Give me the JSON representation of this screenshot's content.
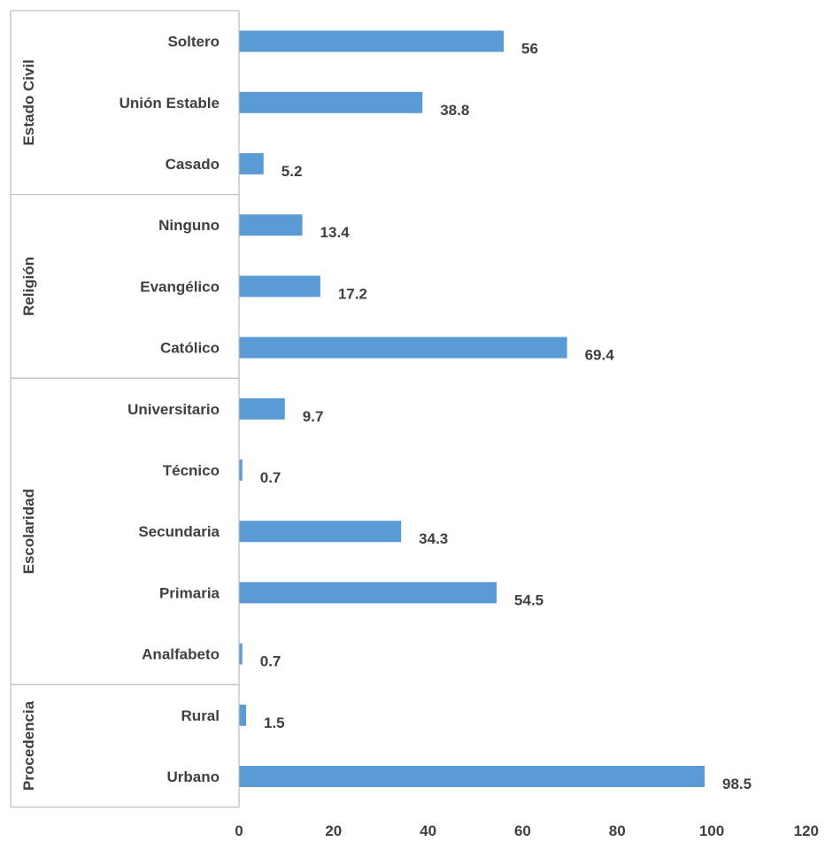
{
  "chart_data": {
    "type": "bar",
    "orientation": "horizontal",
    "groups": [
      {
        "name": "Estado Civil",
        "categories": [
          "Soltero",
          "Unión Estable",
          "Casado"
        ],
        "values": [
          56,
          38.8,
          5.2
        ]
      },
      {
        "name": "Religión",
        "categories": [
          "Ninguno",
          "Evangélico",
          "Católico"
        ],
        "values": [
          13.4,
          17.2,
          69.4
        ]
      },
      {
        "name": "Escolaridad",
        "categories": [
          "Universitario",
          "Técnico",
          "Secundaria",
          "Primaria",
          "Analfabeto"
        ],
        "values": [
          9.7,
          0.7,
          34.3,
          54.5,
          0.7
        ]
      },
      {
        "name": "Procedencia",
        "categories": [
          "Rural",
          "Urbano"
        ],
        "values": [
          1.5,
          98.5
        ]
      }
    ],
    "value_labels": [
      "56",
      "38.8",
      "5.2",
      "13.4",
      "17.2",
      "69.4",
      "9.7",
      "0.7",
      "34.3",
      "54.5",
      "0.7",
      "1.5",
      "98.5"
    ],
    "xlim": [
      0,
      120
    ],
    "x_ticks": [
      "0",
      "20",
      "40",
      "60",
      "80",
      "100",
      "120"
    ],
    "bar_color": "#5B9BD5",
    "grid": false,
    "legend": "none",
    "title": "",
    "xlabel": "",
    "ylabel": ""
  }
}
